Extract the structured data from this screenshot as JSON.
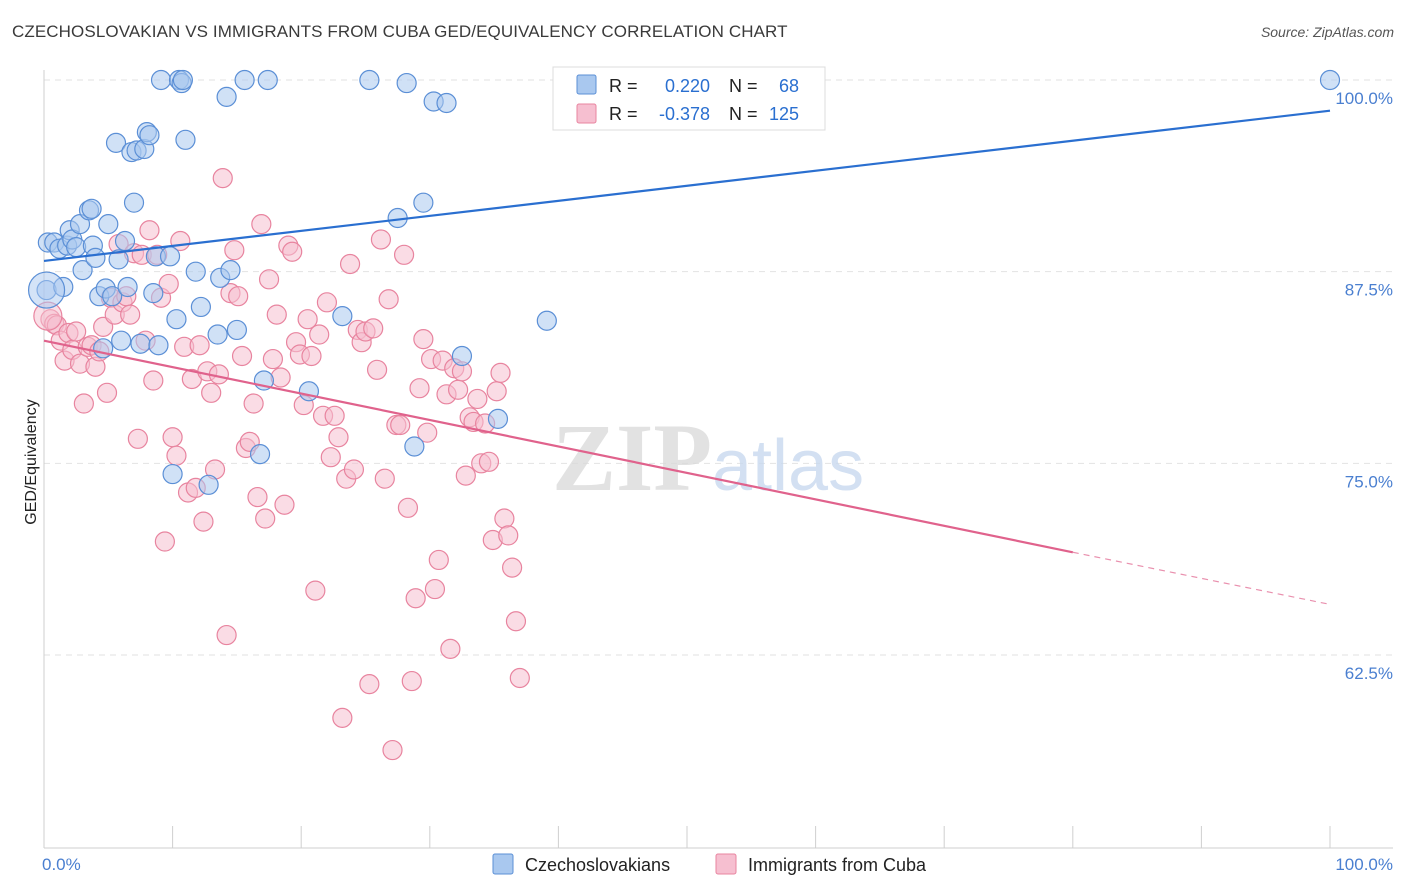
{
  "title": "CZECHOSLOVAKIAN VS IMMIGRANTS FROM CUBA GED/EQUIVALENCY CORRELATION CHART",
  "source": "Source: ZipAtlas.com",
  "watermark": {
    "zip": "ZIP",
    "atlas": "atlas"
  },
  "colors": {
    "blue_fill": "#a9c8ef",
    "blue_stroke": "#5b8fd6",
    "blue_line": "#2a6fd0",
    "pink_fill": "#f6bfd0",
    "pink_stroke": "#e8849f",
    "pink_line": "#e0628c",
    "grid": "#e2e2e2",
    "axis_text": "#4a7fd0"
  },
  "legend_top": {
    "rows": [
      {
        "r_label": "R =",
        "r_value": "0.220",
        "n_label": "N =",
        "n_value": "68"
      },
      {
        "r_label": "R =",
        "r_value": "-0.378",
        "n_label": "N =",
        "n_value": "125"
      }
    ]
  },
  "legend_bottom": {
    "series1": "Czechoslovakians",
    "series2": "Immigrants from Cuba"
  },
  "chart_data": {
    "type": "scatter",
    "ylabel": "GED/Equivalency",
    "x_tick_labels": [
      "0.0%",
      "100.0%"
    ],
    "y_tick_labels": [
      "100.0%",
      "87.5%",
      "75.0%",
      "62.5%"
    ],
    "y_ticks": [
      100.0,
      87.5,
      75.0,
      62.5
    ],
    "xlim": [
      0,
      100
    ],
    "ylim": [
      51.5,
      102
    ],
    "grid": true,
    "series": [
      {
        "name": "Czechoslovakians",
        "r": 0.22,
        "n": 68,
        "trend": {
          "x0": 0,
          "y0": 88.2,
          "x1": 100,
          "y1": 98.0
        },
        "points": [
          [
            0.2,
            86.3
          ],
          [
            0.3,
            89.4
          ],
          [
            0.8,
            89.4
          ],
          [
            1.2,
            89.0
          ],
          [
            1.5,
            86.5
          ],
          [
            1.8,
            89.2
          ],
          [
            2.0,
            90.2
          ],
          [
            2.2,
            89.6
          ],
          [
            2.5,
            89.1
          ],
          [
            2.8,
            90.6
          ],
          [
            3.0,
            87.6
          ],
          [
            3.5,
            91.5
          ],
          [
            3.7,
            91.6
          ],
          [
            3.8,
            89.2
          ],
          [
            4.0,
            88.4
          ],
          [
            4.3,
            85.9
          ],
          [
            4.6,
            82.5
          ],
          [
            4.8,
            86.4
          ],
          [
            5.0,
            90.6
          ],
          [
            5.3,
            85.9
          ],
          [
            5.6,
            95.9
          ],
          [
            5.8,
            88.3
          ],
          [
            6.0,
            83.0
          ],
          [
            6.3,
            89.5
          ],
          [
            6.5,
            86.5
          ],
          [
            6.8,
            95.3
          ],
          [
            7.0,
            92.0
          ],
          [
            7.2,
            95.4
          ],
          [
            7.5,
            82.8
          ],
          [
            7.8,
            95.5
          ],
          [
            8.0,
            96.6
          ],
          [
            8.2,
            96.4
          ],
          [
            8.5,
            86.1
          ],
          [
            8.7,
            88.5
          ],
          [
            8.9,
            82.7
          ],
          [
            9.1,
            100.0
          ],
          [
            9.8,
            88.5
          ],
          [
            10.0,
            74.3
          ],
          [
            10.3,
            84.4
          ],
          [
            10.5,
            100.0
          ],
          [
            10.7,
            99.8
          ],
          [
            10.8,
            100.0
          ],
          [
            11.0,
            96.1
          ],
          [
            11.8,
            87.5
          ],
          [
            12.2,
            85.2
          ],
          [
            12.8,
            73.6
          ],
          [
            13.5,
            83.4
          ],
          [
            13.7,
            87.1
          ],
          [
            14.2,
            98.9
          ],
          [
            14.5,
            87.6
          ],
          [
            15.0,
            83.7
          ],
          [
            15.6,
            100.0
          ],
          [
            16.8,
            75.6
          ],
          [
            17.1,
            80.4
          ],
          [
            17.4,
            100.0
          ],
          [
            20.6,
            79.7
          ],
          [
            23.2,
            84.6
          ],
          [
            25.3,
            100.0
          ],
          [
            27.5,
            91.0
          ],
          [
            28.2,
            99.8
          ],
          [
            28.8,
            76.1
          ],
          [
            29.5,
            92.0
          ],
          [
            30.3,
            98.6
          ],
          [
            31.3,
            98.5
          ],
          [
            32.5,
            82.0
          ],
          [
            35.3,
            77.9
          ],
          [
            39.1,
            84.3
          ],
          [
            100.0,
            100.0
          ]
        ]
      },
      {
        "name": "Immigrants from Cuba",
        "r": -0.378,
        "n": 125,
        "trend": {
          "x0": 0,
          "y0": 83.0,
          "x1": 80.0,
          "y1": 69.2,
          "dash_to_x": 100,
          "dash_to_y": 65.8
        },
        "points": [
          [
            0.5,
            84.4
          ],
          [
            0.8,
            84.1
          ],
          [
            1.0,
            84.0
          ],
          [
            1.3,
            83.0
          ],
          [
            1.6,
            81.7
          ],
          [
            1.9,
            83.5
          ],
          [
            2.2,
            82.4
          ],
          [
            2.5,
            83.6
          ],
          [
            2.8,
            81.5
          ],
          [
            3.1,
            78.9
          ],
          [
            3.4,
            82.6
          ],
          [
            3.7,
            82.7
          ],
          [
            4.0,
            81.3
          ],
          [
            4.3,
            82.3
          ],
          [
            4.6,
            83.9
          ],
          [
            4.9,
            79.6
          ],
          [
            5.2,
            85.8
          ],
          [
            5.5,
            84.7
          ],
          [
            5.8,
            89.3
          ],
          [
            6.1,
            85.5
          ],
          [
            6.4,
            85.9
          ],
          [
            6.7,
            84.7
          ],
          [
            7.0,
            88.7
          ],
          [
            7.3,
            76.6
          ],
          [
            7.6,
            88.6
          ],
          [
            7.9,
            83.0
          ],
          [
            8.2,
            90.2
          ],
          [
            8.5,
            80.4
          ],
          [
            8.8,
            88.6
          ],
          [
            9.1,
            85.8
          ],
          [
            9.4,
            69.9
          ],
          [
            9.7,
            86.7
          ],
          [
            10.0,
            76.7
          ],
          [
            10.3,
            75.5
          ],
          [
            10.6,
            89.5
          ],
          [
            10.9,
            82.6
          ],
          [
            11.2,
            73.1
          ],
          [
            11.5,
            80.5
          ],
          [
            11.8,
            73.4
          ],
          [
            12.1,
            82.7
          ],
          [
            12.4,
            71.2
          ],
          [
            12.7,
            81.0
          ],
          [
            13.0,
            79.6
          ],
          [
            13.3,
            74.6
          ],
          [
            13.6,
            80.8
          ],
          [
            13.9,
            93.6
          ],
          [
            14.2,
            63.8
          ],
          [
            14.5,
            86.1
          ],
          [
            14.8,
            88.9
          ],
          [
            15.1,
            85.9
          ],
          [
            15.4,
            82.0
          ],
          [
            15.7,
            76.0
          ],
          [
            16.0,
            76.4
          ],
          [
            16.3,
            78.9
          ],
          [
            16.6,
            72.8
          ],
          [
            16.9,
            90.6
          ],
          [
            17.2,
            71.4
          ],
          [
            17.5,
            87.0
          ],
          [
            17.8,
            81.8
          ],
          [
            18.1,
            84.7
          ],
          [
            18.4,
            80.6
          ],
          [
            18.7,
            72.3
          ],
          [
            19.0,
            89.2
          ],
          [
            19.3,
            88.8
          ],
          [
            19.6,
            82.9
          ],
          [
            19.9,
            82.1
          ],
          [
            20.2,
            78.8
          ],
          [
            20.5,
            84.4
          ],
          [
            20.8,
            82.0
          ],
          [
            21.1,
            66.7
          ],
          [
            21.4,
            83.4
          ],
          [
            21.7,
            78.1
          ],
          [
            22.0,
            85.5
          ],
          [
            22.3,
            75.4
          ],
          [
            22.6,
            78.1
          ],
          [
            22.9,
            76.7
          ],
          [
            23.2,
            58.4
          ],
          [
            23.5,
            74.0
          ],
          [
            23.8,
            88.0
          ],
          [
            24.1,
            74.6
          ],
          [
            24.4,
            83.7
          ],
          [
            24.7,
            82.9
          ],
          [
            25.0,
            83.6
          ],
          [
            25.3,
            60.6
          ],
          [
            25.6,
            83.8
          ],
          [
            25.9,
            81.1
          ],
          [
            26.2,
            89.6
          ],
          [
            26.5,
            74.0
          ],
          [
            26.8,
            85.7
          ],
          [
            27.1,
            56.3
          ],
          [
            27.4,
            77.5
          ],
          [
            27.7,
            77.5
          ],
          [
            28.0,
            88.6
          ],
          [
            28.3,
            72.1
          ],
          [
            28.6,
            60.8
          ],
          [
            28.9,
            66.2
          ],
          [
            29.2,
            79.9
          ],
          [
            29.5,
            83.1
          ],
          [
            29.8,
            77.0
          ],
          [
            30.1,
            81.8
          ],
          [
            30.4,
            66.8
          ],
          [
            30.7,
            68.7
          ],
          [
            31.0,
            81.7
          ],
          [
            31.3,
            79.5
          ],
          [
            31.6,
            62.9
          ],
          [
            31.9,
            81.2
          ],
          [
            32.2,
            79.8
          ],
          [
            32.5,
            81.0
          ],
          [
            32.8,
            74.2
          ],
          [
            33.1,
            78.0
          ],
          [
            33.4,
            77.7
          ],
          [
            33.7,
            79.2
          ],
          [
            34.0,
            75.0
          ],
          [
            34.3,
            77.6
          ],
          [
            34.6,
            75.1
          ],
          [
            34.9,
            70.0
          ],
          [
            35.2,
            79.7
          ],
          [
            35.5,
            80.9
          ],
          [
            35.8,
            71.4
          ],
          [
            36.1,
            70.3
          ],
          [
            36.4,
            68.2
          ],
          [
            36.7,
            64.7
          ],
          [
            37.0,
            61.0
          ]
        ]
      }
    ]
  }
}
